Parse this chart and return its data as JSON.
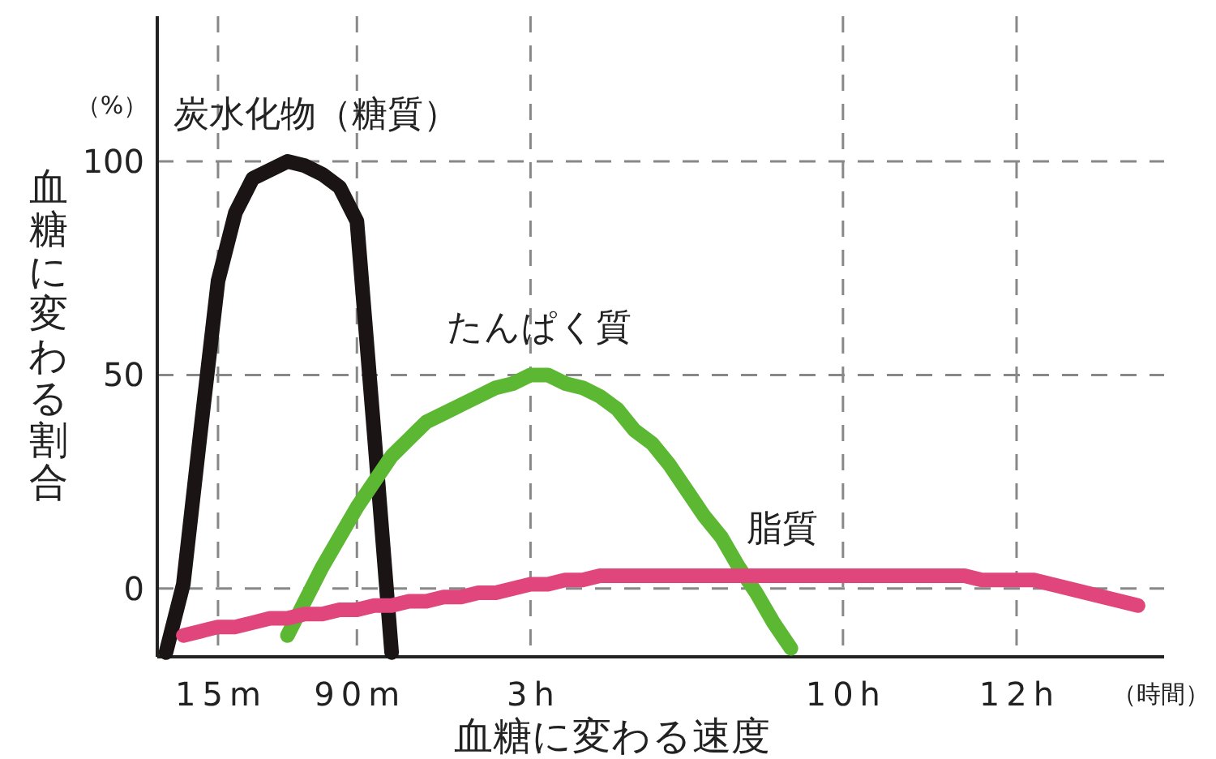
{
  "chart_data": {
    "type": "line",
    "xlabel": "血糖に変わる速度",
    "ylabel": "血糖に変わる割合",
    "annotations": [
      "（%）",
      "（時間）"
    ],
    "ylim": [
      -16,
      134
    ],
    "categories": [
      null,
      null,
      null,
      "15m",
      null,
      null,
      null,
      null,
      null,
      null,
      null,
      "90m",
      null,
      null,
      null,
      null,
      null,
      null,
      null,
      null,
      null,
      "3h",
      null,
      null,
      null,
      null,
      null,
      null,
      null,
      null,
      null,
      null,
      null,
      null,
      null,
      null,
      null,
      null,
      null,
      "10h",
      null,
      null,
      null,
      null,
      null,
      null,
      null,
      null,
      null,
      "12h",
      null,
      null,
      null,
      null,
      null,
      null,
      null,
      null
    ],
    "yticks": [
      0,
      50,
      100
    ],
    "grid": true,
    "series": [
      {
        "name": "炭水化物（糖質）",
        "color": "#1a1414",
        "values": [
          -15,
          1,
          37,
          72,
          88,
          96,
          98,
          100,
          99,
          97,
          94,
          86,
          36,
          -15,
          null,
          null,
          null,
          null,
          null,
          null,
          null,
          null,
          null,
          null,
          null,
          null,
          null,
          null,
          null,
          null,
          null,
          null,
          null,
          null,
          null,
          null,
          null,
          null,
          null,
          null,
          null,
          null,
          null,
          null,
          null,
          null,
          null,
          null,
          null,
          null,
          null,
          null,
          null,
          null,
          null,
          null,
          null,
          null
        ]
      },
      {
        "name": "たんぱく質",
        "color": "#5cb833",
        "values": [
          null,
          null,
          null,
          null,
          null,
          null,
          null,
          -11,
          -3,
          5,
          12,
          19,
          25,
          31,
          35,
          39,
          41,
          43,
          45,
          47,
          48,
          50,
          50,
          48,
          47,
          45,
          42,
          37,
          34,
          29,
          23,
          17,
          12,
          5,
          -1,
          -8,
          -14,
          null,
          null,
          null,
          null,
          null,
          null,
          null,
          null,
          null,
          null,
          null,
          null,
          null,
          null,
          null,
          null,
          null,
          null,
          null,
          null,
          null
        ]
      },
      {
        "name": "脂質",
        "color": "#e0457b",
        "values": [
          null,
          -11,
          -10,
          -9,
          -9,
          -8,
          -7,
          -7,
          -6,
          -6,
          -5,
          -5,
          -4,
          -4,
          -3,
          -3,
          -2,
          -2,
          -1,
          -1,
          0,
          1,
          1,
          2,
          2,
          3,
          3,
          3,
          3,
          3,
          3,
          3,
          3,
          3,
          3,
          3,
          3,
          3,
          3,
          3,
          3,
          3,
          3,
          3,
          3,
          3,
          3,
          2,
          2,
          2,
          2,
          1,
          0,
          -1,
          -2,
          -3,
          -4,
          null
        ]
      }
    ]
  }
}
